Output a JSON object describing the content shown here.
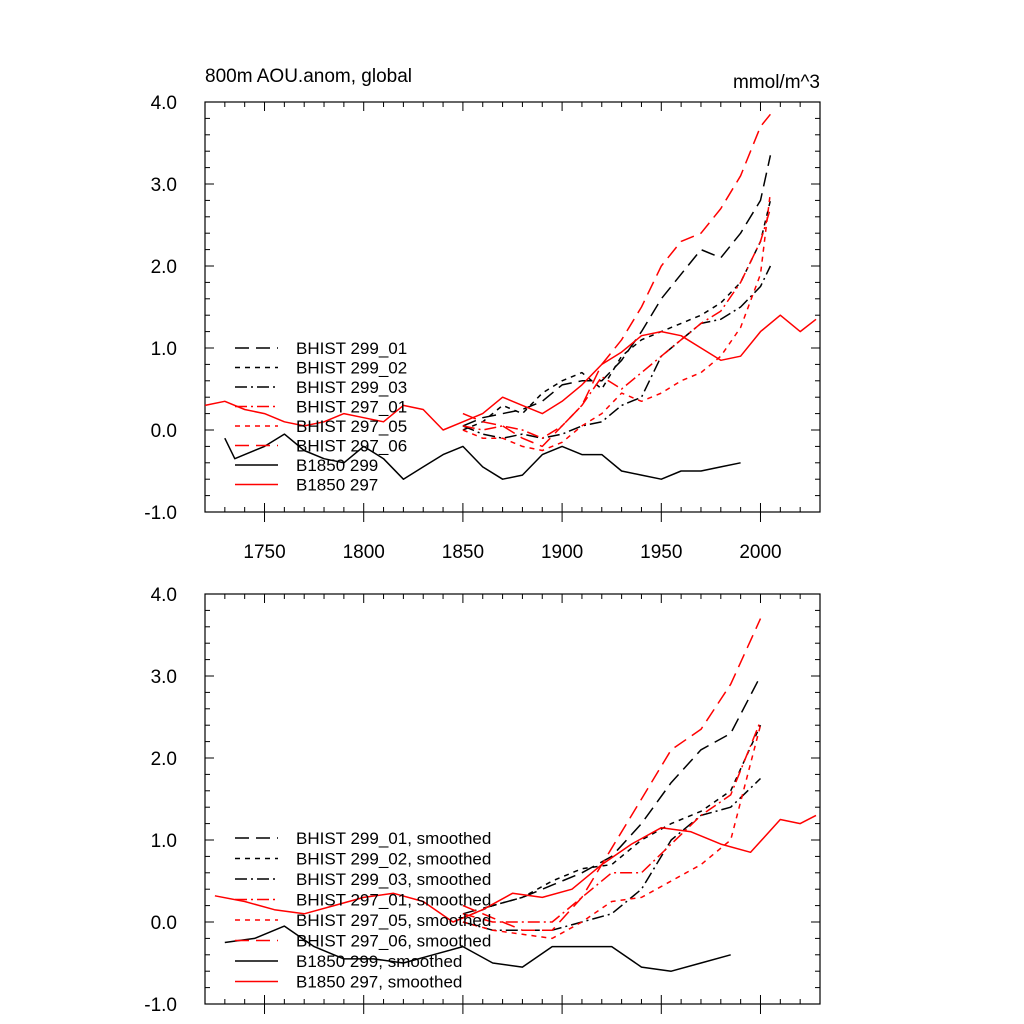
{
  "chart_data": [
    {
      "type": "line",
      "title": "800m AOU.anom, global",
      "units": "mmol/m^3",
      "xlim": [
        1720,
        2030
      ],
      "ylim": [
        -1.0,
        4.0
      ],
      "xticks": [
        1750,
        1800,
        1850,
        1900,
        1950,
        2000
      ],
      "yticks": [
        -1.0,
        0.0,
        1.0,
        2.0,
        3.0,
        4.0
      ],
      "ytick_labels": [
        "-1.0",
        "0.0",
        "1.0",
        "2.0",
        "3.0",
        "4.0"
      ],
      "legend": "left, lower-middle",
      "series": [
        {
          "name": "BHIST 299_01",
          "color": "#000000",
          "dash": "long-dash",
          "x": [
            1850,
            1860,
            1870,
            1880,
            1890,
            1900,
            1910,
            1920,
            1930,
            1940,
            1950,
            1960,
            1970,
            1980,
            1990,
            2000,
            2005
          ],
          "y": [
            0.05,
            0.15,
            0.2,
            0.25,
            0.35,
            0.55,
            0.6,
            0.6,
            0.85,
            1.2,
            1.6,
            1.9,
            2.2,
            2.1,
            2.4,
            2.8,
            3.35
          ]
        },
        {
          "name": "BHIST 299_02",
          "color": "#000000",
          "dash": "short-dash",
          "x": [
            1850,
            1860,
            1870,
            1880,
            1890,
            1900,
            1910,
            1920,
            1930,
            1940,
            1950,
            1960,
            1970,
            1980,
            1990,
            2000,
            2005
          ],
          "y": [
            0.0,
            0.1,
            0.3,
            0.2,
            0.45,
            0.6,
            0.7,
            0.5,
            0.9,
            1.1,
            1.2,
            1.3,
            1.4,
            1.55,
            1.8,
            2.3,
            2.8
          ]
        },
        {
          "name": "BHIST 299_03",
          "color": "#000000",
          "dash": "dash-dot",
          "x": [
            1850,
            1860,
            1870,
            1880,
            1890,
            1900,
            1910,
            1920,
            1930,
            1940,
            1950,
            1960,
            1970,
            1980,
            1990,
            2000,
            2005
          ],
          "y": [
            0.05,
            -0.05,
            -0.1,
            -0.05,
            -0.1,
            -0.05,
            0.05,
            0.1,
            0.3,
            0.4,
            0.9,
            1.1,
            1.3,
            1.35,
            1.5,
            1.75,
            2.0
          ]
        },
        {
          "name": "BHIST 297_01",
          "color": "#ff0000",
          "dash": "dash-dot",
          "x": [
            1850,
            1860,
            1870,
            1880,
            1890,
            1900,
            1910,
            1920,
            1930,
            1940,
            1950,
            1960,
            1970,
            1980,
            1990,
            2000,
            2005
          ],
          "y": [
            0.05,
            0.0,
            0.05,
            0.0,
            -0.1,
            0.05,
            0.3,
            0.65,
            0.5,
            0.7,
            0.9,
            1.1,
            1.3,
            1.45,
            1.8,
            2.3,
            2.7
          ]
        },
        {
          "name": "BHIST 297_05",
          "color": "#ff0000",
          "dash": "short-dash",
          "x": [
            1850,
            1860,
            1870,
            1880,
            1890,
            1900,
            1910,
            1920,
            1930,
            1940,
            1950,
            1960,
            1970,
            1980,
            1990,
            2000,
            2005
          ],
          "y": [
            0.0,
            -0.1,
            -0.1,
            -0.2,
            -0.25,
            -0.15,
            0.05,
            0.2,
            0.45,
            0.35,
            0.45,
            0.6,
            0.7,
            0.9,
            1.25,
            1.9,
            2.9
          ]
        },
        {
          "name": "BHIST 297_06",
          "color": "#ff0000",
          "dash": "long-dash",
          "x": [
            1850,
            1860,
            1870,
            1880,
            1890,
            1900,
            1910,
            1920,
            1930,
            1940,
            1950,
            1960,
            1970,
            1980,
            1990,
            2000,
            2005
          ],
          "y": [
            0.2,
            0.1,
            0.05,
            -0.1,
            -0.2,
            0.05,
            0.3,
            0.8,
            1.1,
            1.5,
            2.0,
            2.3,
            2.4,
            2.7,
            3.1,
            3.7,
            3.85
          ]
        },
        {
          "name": "B1850 299",
          "color": "#000000",
          "dash": "solid",
          "x": [
            1730,
            1735,
            1740,
            1750,
            1760,
            1770,
            1780,
            1790,
            1800,
            1810,
            1820,
            1830,
            1840,
            1850,
            1860,
            1870,
            1880,
            1890,
            1900,
            1910,
            1920,
            1930,
            1940,
            1950,
            1960,
            1970,
            1980,
            1990
          ],
          "y": [
            -0.1,
            -0.35,
            -0.3,
            -0.2,
            -0.05,
            -0.25,
            -0.35,
            -0.4,
            -0.2,
            -0.35,
            -0.6,
            -0.45,
            -0.3,
            -0.2,
            -0.45,
            -0.6,
            -0.55,
            -0.3,
            -0.2,
            -0.3,
            -0.3,
            -0.5,
            -0.55,
            -0.6,
            -0.5,
            -0.5,
            -0.45,
            -0.4
          ]
        },
        {
          "name": "B1850 297",
          "color": "#ff0000",
          "dash": "solid",
          "x": [
            1720,
            1730,
            1740,
            1750,
            1760,
            1770,
            1780,
            1790,
            1800,
            1810,
            1820,
            1830,
            1840,
            1850,
            1860,
            1870,
            1880,
            1890,
            1900,
            1910,
            1920,
            1930,
            1940,
            1950,
            1960,
            1970,
            1980,
            1990,
            2000,
            2010,
            2020,
            2028
          ],
          "y": [
            0.3,
            0.35,
            0.25,
            0.2,
            0.1,
            0.05,
            0.1,
            0.2,
            0.15,
            0.1,
            0.3,
            0.25,
            0.0,
            0.1,
            0.2,
            0.4,
            0.3,
            0.2,
            0.35,
            0.55,
            0.8,
            0.95,
            1.15,
            1.2,
            1.15,
            1.0,
            0.85,
            0.9,
            1.2,
            1.4,
            1.2,
            1.35
          ]
        }
      ]
    },
    {
      "type": "line",
      "xlim": [
        1720,
        2030
      ],
      "ylim": [
        -1.0,
        4.0
      ],
      "xticks": [
        1750,
        1800,
        1850,
        1900,
        1950,
        2000
      ],
      "yticks": [
        -1.0,
        0.0,
        1.0,
        2.0,
        3.0,
        4.0
      ],
      "ytick_labels": [
        "-1.0",
        "0.0",
        "1.0",
        "2.0",
        "3.0",
        "4.0"
      ],
      "legend": "left, lower-middle",
      "series": [
        {
          "name": "BHIST 299_01, smoothed",
          "color": "#000000",
          "dash": "long-dash",
          "x": [
            1850,
            1865,
            1880,
            1895,
            1910,
            1925,
            1940,
            1955,
            1970,
            1985,
            2000
          ],
          "y": [
            0.1,
            0.2,
            0.3,
            0.45,
            0.6,
            0.8,
            1.2,
            1.7,
            2.1,
            2.3,
            3.0
          ]
        },
        {
          "name": "BHIST 299_02, smoothed",
          "color": "#000000",
          "dash": "short-dash",
          "x": [
            1850,
            1865,
            1880,
            1895,
            1910,
            1925,
            1940,
            1955,
            1970,
            1985,
            2000
          ],
          "y": [
            0.05,
            0.2,
            0.3,
            0.5,
            0.65,
            0.7,
            1.0,
            1.2,
            1.35,
            1.6,
            2.4
          ]
        },
        {
          "name": "BHIST 299_03, smoothed",
          "color": "#000000",
          "dash": "dash-dot",
          "x": [
            1850,
            1865,
            1880,
            1895,
            1910,
            1925,
            1940,
            1955,
            1970,
            1985,
            2000
          ],
          "y": [
            0.0,
            -0.1,
            -0.1,
            -0.1,
            0.0,
            0.1,
            0.4,
            1.0,
            1.3,
            1.4,
            1.75
          ]
        },
        {
          "name": "BHIST 297_01, smoothed",
          "color": "#ff0000",
          "dash": "dash-dot",
          "x": [
            1850,
            1865,
            1880,
            1895,
            1910,
            1925,
            1940,
            1955,
            1970,
            1985,
            2000
          ],
          "y": [
            0.1,
            0.0,
            0.0,
            0.0,
            0.3,
            0.6,
            0.6,
            0.95,
            1.3,
            1.55,
            2.45
          ]
        },
        {
          "name": "BHIST 297_05, smoothed",
          "color": "#ff0000",
          "dash": "short-dash",
          "x": [
            1850,
            1865,
            1880,
            1895,
            1910,
            1925,
            1940,
            1955,
            1970,
            1985,
            2000
          ],
          "y": [
            0.0,
            -0.1,
            -0.15,
            -0.2,
            0.0,
            0.25,
            0.3,
            0.5,
            0.7,
            1.0,
            2.4
          ]
        },
        {
          "name": "BHIST 297_06, smoothed",
          "color": "#ff0000",
          "dash": "long-dash",
          "x": [
            1850,
            1865,
            1880,
            1895,
            1910,
            1925,
            1940,
            1955,
            1970,
            1985,
            2000
          ],
          "y": [
            0.2,
            0.05,
            -0.1,
            -0.1,
            0.3,
            0.9,
            1.5,
            2.1,
            2.35,
            2.9,
            3.7
          ]
        },
        {
          "name": "B1850 299, smoothed",
          "color": "#000000",
          "dash": "solid",
          "x": [
            1730,
            1745,
            1760,
            1775,
            1790,
            1805,
            1820,
            1835,
            1850,
            1865,
            1880,
            1895,
            1910,
            1925,
            1940,
            1955,
            1970,
            1985
          ],
          "y": [
            -0.25,
            -0.2,
            -0.05,
            -0.3,
            -0.45,
            -0.45,
            -0.5,
            -0.4,
            -0.3,
            -0.5,
            -0.55,
            -0.3,
            -0.3,
            -0.3,
            -0.55,
            -0.6,
            -0.5,
            -0.4
          ]
        },
        {
          "name": "B1850 297, smoothed",
          "color": "#ff0000",
          "dash": "solid",
          "x": [
            1725,
            1740,
            1755,
            1770,
            1785,
            1800,
            1815,
            1830,
            1845,
            1860,
            1875,
            1890,
            1905,
            1920,
            1935,
            1950,
            1965,
            1980,
            1995,
            2010,
            2020,
            2028
          ],
          "y": [
            0.32,
            0.25,
            0.15,
            0.1,
            0.2,
            0.3,
            0.35,
            0.25,
            0.0,
            0.15,
            0.35,
            0.3,
            0.4,
            0.7,
            0.95,
            1.15,
            1.1,
            0.95,
            0.85,
            1.25,
            1.2,
            1.3
          ]
        }
      ]
    }
  ]
}
